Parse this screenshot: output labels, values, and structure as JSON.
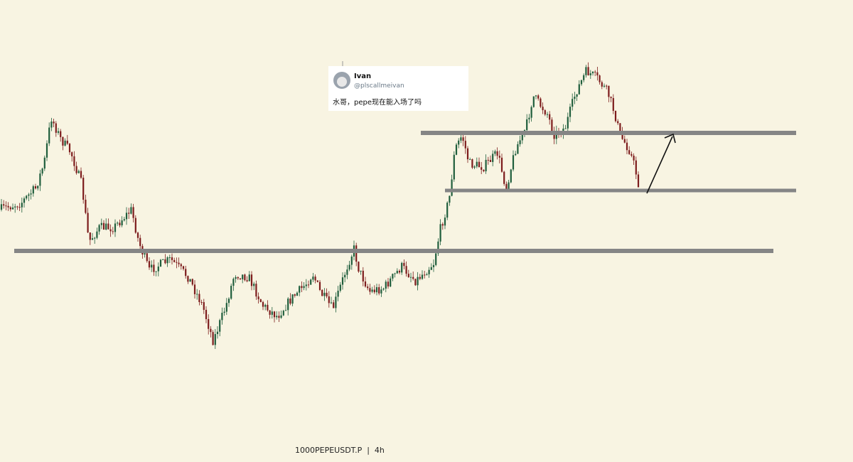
{
  "tweet": {
    "name": "Ivan",
    "handle": "@plscallmeivan",
    "text": "水哥，pepe现在能入场了吗"
  },
  "footer": {
    "label": "1000PEPEUSDT.P  |  4h"
  }
}
